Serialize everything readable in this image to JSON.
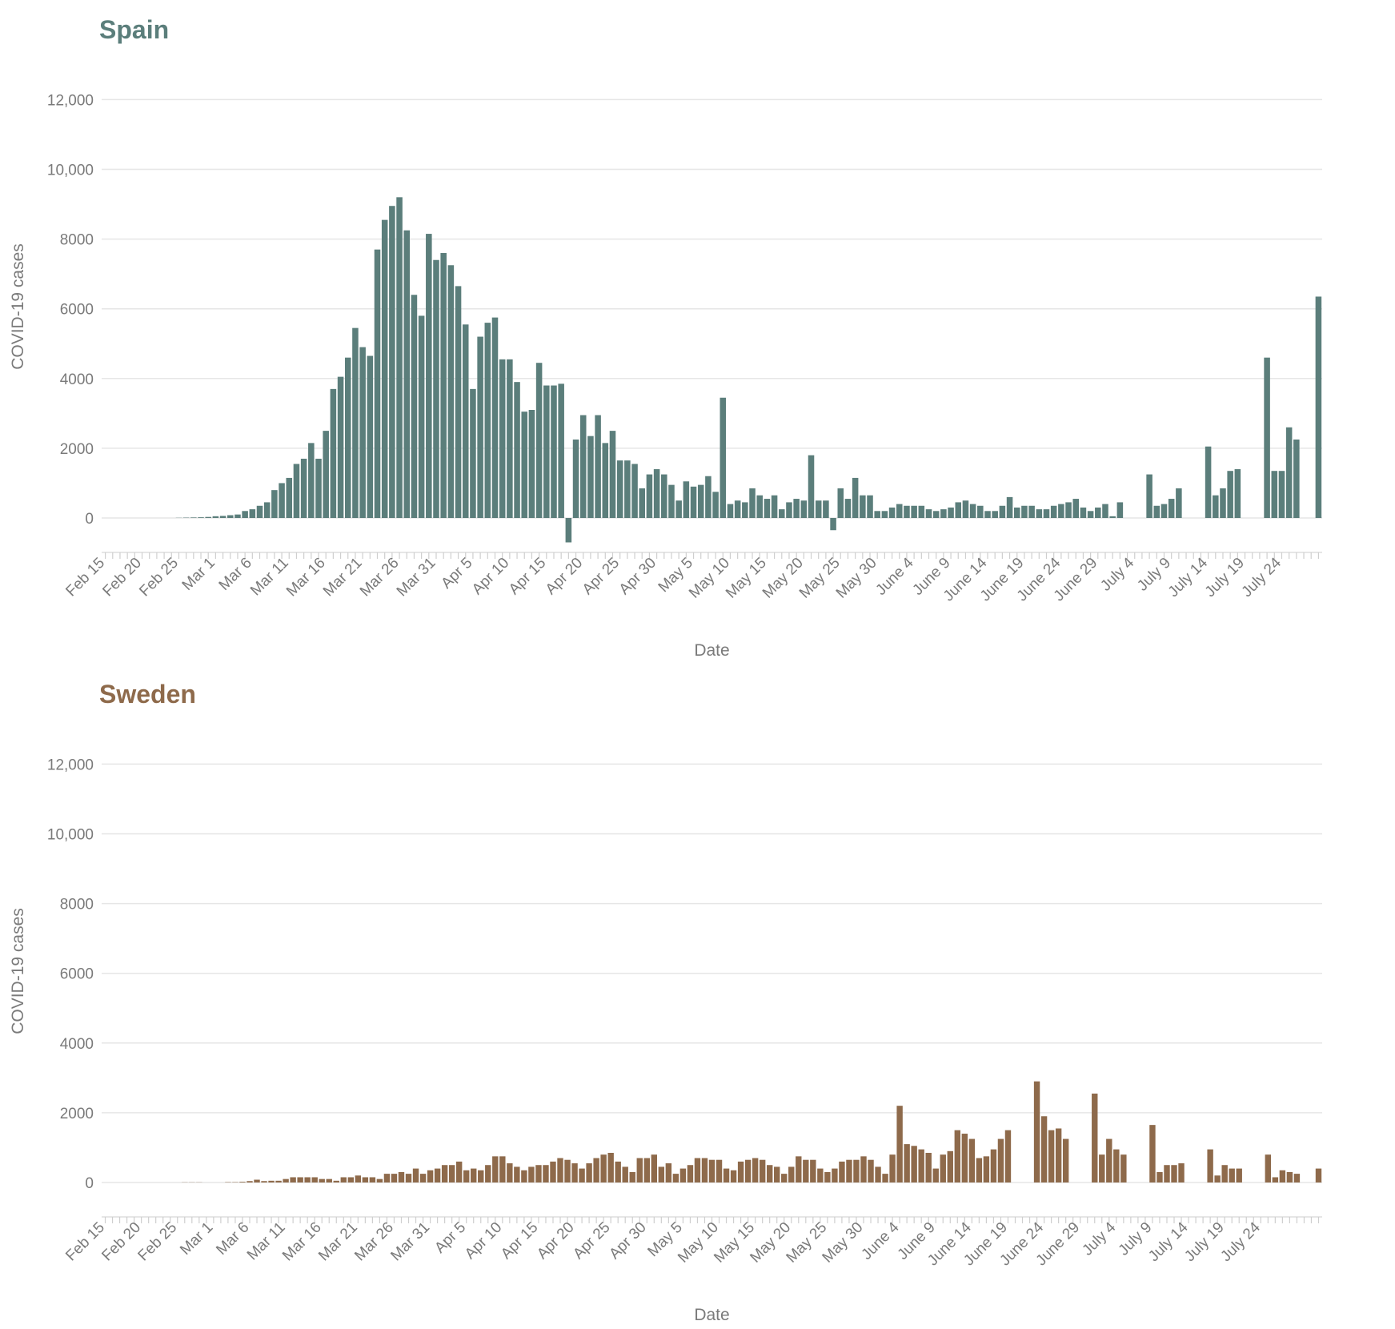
{
  "chart_data": [
    {
      "type": "bar",
      "title": "Spain",
      "xlabel": "Date",
      "ylabel": "COVID-19 cases",
      "ylim": [
        -1000,
        12000
      ],
      "yticks": [
        0,
        2000,
        4000,
        6000,
        8000,
        10000,
        12000
      ],
      "ytick_labels": [
        "0",
        "2000",
        "4000",
        "6000",
        "8000",
        "10,000",
        "12,000"
      ],
      "xtick_labels": [
        "Feb 15",
        "Feb 20",
        "Feb 25",
        "Mar 1",
        "Mar 6",
        "Mar 11",
        "Mar 16",
        "Mar 21",
        "Mar 26",
        "Mar 31",
        "Apr 5",
        "Apr 10",
        "Apr 15",
        "Apr 20",
        "Apr 25",
        "Apr 30",
        "May 5",
        "May 10",
        "May 15",
        "May 20",
        "May 25",
        "May 30",
        "June 4",
        "June 9",
        "June 14",
        "June 19",
        "June 24",
        "June 29",
        "July 4",
        "July 9",
        "July 14",
        "July 19",
        "July 24"
      ],
      "grid": true,
      "color": "#5b7e7b",
      "title_color": "#5b7e7b",
      "start_date": "Feb 15",
      "values": [
        0,
        0,
        0,
        0,
        0,
        0,
        0,
        0,
        0,
        0,
        5,
        10,
        15,
        20,
        30,
        50,
        60,
        80,
        100,
        200,
        250,
        350,
        450,
        800,
        1000,
        1150,
        1550,
        1700,
        2150,
        1700,
        2500,
        3700,
        4050,
        4600,
        5450,
        4900,
        4650,
        7700,
        8550,
        8950,
        9200,
        8250,
        6400,
        5800,
        8150,
        7400,
        7600,
        7250,
        6650,
        5550,
        3700,
        5200,
        5600,
        5750,
        4550,
        4550,
        3900,
        3050,
        3100,
        4450,
        3800,
        3800,
        3850,
        -700,
        2250,
        2950,
        2350,
        2950,
        2150,
        2500,
        1650,
        1650,
        1550,
        850,
        1250,
        1400,
        1250,
        950,
        500,
        1050,
        900,
        950,
        1200,
        750,
        3450,
        400,
        500,
        450,
        850,
        650,
        550,
        650,
        250,
        450,
        550,
        500,
        1800,
        500,
        500,
        -350,
        850,
        550,
        1150,
        650,
        650,
        200,
        200,
        300,
        400,
        350,
        350,
        350,
        250,
        200,
        250,
        300,
        450,
        500,
        400,
        350,
        200,
        200,
        350,
        600,
        300,
        350,
        350,
        250,
        250,
        350,
        400,
        450,
        550,
        300,
        200,
        300,
        400,
        50,
        450,
        null,
        null,
        null,
        1250,
        350,
        400,
        550,
        850,
        null,
        null,
        null,
        2050,
        650,
        850,
        1350,
        1400,
        null,
        null,
        null,
        4600,
        1350,
        1350,
        2600,
        2250,
        null,
        null,
        6350
      ]
    },
    {
      "type": "bar",
      "title": "Sweden",
      "xlabel": "Date",
      "ylabel": "COVID-19 cases",
      "ylim": [
        -1000,
        12000
      ],
      "yticks": [
        0,
        2000,
        4000,
        6000,
        8000,
        10000,
        12000
      ],
      "ytick_labels": [
        "0",
        "2000",
        "4000",
        "6000",
        "8000",
        "10,000",
        "12,000"
      ],
      "xtick_labels": [
        "Feb 15",
        "Feb 20",
        "Feb 25",
        "Mar 1",
        "Mar 6",
        "Mar 11",
        "Mar 16",
        "Mar 21",
        "Mar 26",
        "Mar 31",
        "Apr 5",
        "Apr 10",
        "Apr 15",
        "Apr 20",
        "Apr 25",
        "Apr 30",
        "May 5",
        "May 10",
        "May 15",
        "May 20",
        "May 25",
        "May 30",
        "June 4",
        "June 9",
        "June 14",
        "June 19",
        "June 24",
        "June 29",
        "July 4",
        "July 9",
        "July 14",
        "July 19",
        "July 24"
      ],
      "grid": true,
      "color": "#8e6a4b",
      "title_color": "#8e6a4b",
      "start_date": "Feb 15",
      "values": [
        0,
        0,
        0,
        0,
        0,
        0,
        0,
        0,
        0,
        0,
        0,
        5,
        5,
        5,
        0,
        0,
        0,
        10,
        10,
        20,
        40,
        80,
        40,
        50,
        50,
        100,
        150,
        150,
        150,
        150,
        100,
        100,
        50,
        150,
        150,
        200,
        150,
        150,
        100,
        250,
        250,
        300,
        250,
        400,
        250,
        350,
        400,
        500,
        500,
        600,
        350,
        400,
        350,
        500,
        750,
        750,
        550,
        450,
        350,
        450,
        500,
        500,
        600,
        700,
        650,
        550,
        400,
        550,
        700,
        800,
        850,
        600,
        450,
        300,
        700,
        700,
        800,
        450,
        550,
        250,
        400,
        500,
        700,
        700,
        650,
        650,
        400,
        350,
        600,
        650,
        700,
        650,
        500,
        450,
        250,
        450,
        750,
        650,
        650,
        400,
        300,
        400,
        600,
        650,
        650,
        750,
        650,
        450,
        250,
        800,
        2200,
        1100,
        1050,
        950,
        850,
        400,
        800,
        900,
        1500,
        1400,
        1250,
        700,
        750,
        950,
        1250,
        1500,
        null,
        null,
        null,
        2900,
        1900,
        1500,
        1550,
        1250,
        null,
        null,
        null,
        2550,
        800,
        1250,
        950,
        800,
        null,
        null,
        null,
        1650,
        300,
        500,
        500,
        550,
        null,
        null,
        null,
        950,
        200,
        500,
        400,
        400,
        null,
        null,
        null,
        800,
        150,
        350,
        300,
        250,
        null,
        null,
        400
      ]
    }
  ]
}
